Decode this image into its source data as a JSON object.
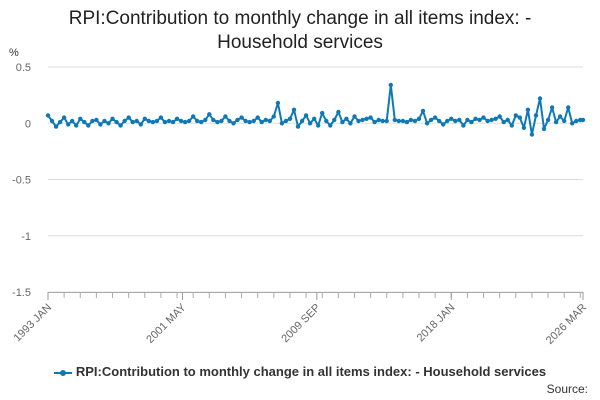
{
  "chart_data": {
    "type": "line",
    "title_lines": [
      "RPI:Contribution to monthly change in all items index: -",
      "Household services"
    ],
    "ylabel": "%",
    "ylim": [
      -1.5,
      0.5
    ],
    "yticks": [
      0.5,
      0,
      -0.5,
      -1,
      -1.5
    ],
    "ytick_labels": [
      "0.5",
      "0",
      "-0.5",
      "-1",
      "-1.5"
    ],
    "xlim": [
      "1993 JAN",
      "2026 MAR"
    ],
    "xticks": [
      "1993 JAN",
      "2001 MAY",
      "2009 SEP",
      "2018 JAN",
      "2026 MAR"
    ],
    "grid": "horizontal",
    "legend_position": "bottom",
    "color": "#0f79b5",
    "series": [
      {
        "name": "RPI:Contribution to monthly change in all items index: - Household services",
        "points": [
          [
            "1993 JAN",
            0.07
          ],
          [
            "1993 APR",
            0.02
          ],
          [
            "1993 JUL",
            -0.03
          ],
          [
            "1993 OCT",
            0.01
          ],
          [
            "1994 JAN",
            0.05
          ],
          [
            "1994 APR",
            -0.01
          ],
          [
            "1994 JUL",
            0.02
          ],
          [
            "1994 OCT",
            -0.02
          ],
          [
            "1995 JAN",
            0.04
          ],
          [
            "1995 APR",
            0.01
          ],
          [
            "1995 JUL",
            -0.02
          ],
          [
            "1995 OCT",
            0.02
          ],
          [
            "1996 JAN",
            0.03
          ],
          [
            "1996 APR",
            -0.01
          ],
          [
            "1996 JUL",
            0.02
          ],
          [
            "1996 OCT",
            0.0
          ],
          [
            "1997 JAN",
            0.04
          ],
          [
            "1997 APR",
            0.01
          ],
          [
            "1997 JUL",
            -0.02
          ],
          [
            "1997 OCT",
            0.02
          ],
          [
            "1998 JAN",
            0.05
          ],
          [
            "1998 APR",
            0.01
          ],
          [
            "1998 JUL",
            0.02
          ],
          [
            "1998 OCT",
            -0.01
          ],
          [
            "1999 JAN",
            0.04
          ],
          [
            "1999 APR",
            0.02
          ],
          [
            "1999 JUL",
            0.01
          ],
          [
            "1999 OCT",
            0.02
          ],
          [
            "2000 JAN",
            0.05
          ],
          [
            "2000 APR",
            0.01
          ],
          [
            "2000 JUL",
            0.02
          ],
          [
            "2000 OCT",
            0.01
          ],
          [
            "2001 JAN",
            0.04
          ],
          [
            "2001 APR",
            0.02
          ],
          [
            "2001 JUL",
            0.01
          ],
          [
            "2001 OCT",
            0.02
          ],
          [
            "2002 JAN",
            0.06
          ],
          [
            "2002 APR",
            0.02
          ],
          [
            "2002 JUL",
            0.01
          ],
          [
            "2002 OCT",
            0.03
          ],
          [
            "2003 JAN",
            0.08
          ],
          [
            "2003 APR",
            0.03
          ],
          [
            "2003 JUL",
            0.01
          ],
          [
            "2003 OCT",
            0.02
          ],
          [
            "2004 JAN",
            0.06
          ],
          [
            "2004 APR",
            0.02
          ],
          [
            "2004 JUL",
            0.0
          ],
          [
            "2004 OCT",
            0.03
          ],
          [
            "2005 JAN",
            0.05
          ],
          [
            "2005 APR",
            0.02
          ],
          [
            "2005 JUL",
            0.01
          ],
          [
            "2005 OCT",
            0.02
          ],
          [
            "2006 JAN",
            0.05
          ],
          [
            "2006 APR",
            0.01
          ],
          [
            "2006 JUL",
            0.03
          ],
          [
            "2006 OCT",
            0.02
          ],
          [
            "2007 JAN",
            0.06
          ],
          [
            "2007 APR",
            0.18
          ],
          [
            "2007 JUL",
            0.0
          ],
          [
            "2007 OCT",
            0.02
          ],
          [
            "2008 JAN",
            0.04
          ],
          [
            "2008 APR",
            0.12
          ],
          [
            "2008 JUL",
            -0.03
          ],
          [
            "2008 OCT",
            0.02
          ],
          [
            "2009 JAN",
            0.07
          ],
          [
            "2009 APR",
            0.0
          ],
          [
            "2009 JUL",
            0.04
          ],
          [
            "2009 OCT",
            -0.02
          ],
          [
            "2010 JAN",
            0.09
          ],
          [
            "2010 APR",
            0.02
          ],
          [
            "2010 JUL",
            -0.02
          ],
          [
            "2010 OCT",
            0.03
          ],
          [
            "2011 JAN",
            0.1
          ],
          [
            "2011 APR",
            0.01
          ],
          [
            "2011 JUL",
            0.04
          ],
          [
            "2011 OCT",
            0.0
          ],
          [
            "2012 JAN",
            0.06
          ],
          [
            "2012 APR",
            0.02
          ],
          [
            "2012 JUL",
            0.03
          ],
          [
            "2012 OCT",
            0.04
          ],
          [
            "2013 JAN",
            0.05
          ],
          [
            "2013 APR",
            0.01
          ],
          [
            "2013 JUL",
            0.03
          ],
          [
            "2013 OCT",
            0.02
          ],
          [
            "2014 JAN",
            0.02
          ],
          [
            "2014 APR",
            0.34
          ],
          [
            "2014 JUL",
            0.03
          ],
          [
            "2014 OCT",
            0.02
          ],
          [
            "2015 JAN",
            0.02
          ],
          [
            "2015 APR",
            0.01
          ],
          [
            "2015 JUL",
            0.03
          ],
          [
            "2015 OCT",
            0.02
          ],
          [
            "2016 JAN",
            0.04
          ],
          [
            "2016 APR",
            0.11
          ],
          [
            "2016 JUL",
            0.0
          ],
          [
            "2016 OCT",
            0.03
          ],
          [
            "2017 JAN",
            0.05
          ],
          [
            "2017 APR",
            0.02
          ],
          [
            "2017 JUL",
            -0.01
          ],
          [
            "2017 OCT",
            0.02
          ],
          [
            "2018 JAN",
            0.04
          ],
          [
            "2018 APR",
            0.02
          ],
          [
            "2018 JUL",
            0.03
          ],
          [
            "2018 OCT",
            -0.02
          ],
          [
            "2019 JAN",
            0.03
          ],
          [
            "2019 APR",
            0.01
          ],
          [
            "2019 JUL",
            0.04
          ],
          [
            "2019 OCT",
            0.03
          ],
          [
            "2020 JAN",
            0.05
          ],
          [
            "2020 APR",
            0.02
          ],
          [
            "2020 JUL",
            0.03
          ],
          [
            "2020 OCT",
            0.04
          ],
          [
            "2021 JAN",
            0.06
          ],
          [
            "2021 APR",
            0.01
          ],
          [
            "2021 JUL",
            0.03
          ],
          [
            "2021 OCT",
            -0.02
          ],
          [
            "2022 JAN",
            0.07
          ],
          [
            "2022 APR",
            0.05
          ],
          [
            "2022 JUL",
            -0.04
          ],
          [
            "2022 OCT",
            0.12
          ],
          [
            "2023 JAN",
            -0.1
          ],
          [
            "2023 APR",
            0.07
          ],
          [
            "2023 JUL",
            0.22
          ],
          [
            "2023 OCT",
            -0.05
          ],
          [
            "2024 JAN",
            0.03
          ],
          [
            "2024 APR",
            0.14
          ],
          [
            "2024 JUL",
            0.01
          ],
          [
            "2024 OCT",
            0.06
          ],
          [
            "2025 JAN",
            0.02
          ],
          [
            "2025 APR",
            0.14
          ],
          [
            "2025 JUL",
            0.0
          ],
          [
            "2025 OCT",
            0.02
          ],
          [
            "2026 JAN",
            0.03
          ],
          [
            "2026 MAR",
            0.03
          ]
        ]
      }
    ]
  },
  "source_label": "Source:"
}
